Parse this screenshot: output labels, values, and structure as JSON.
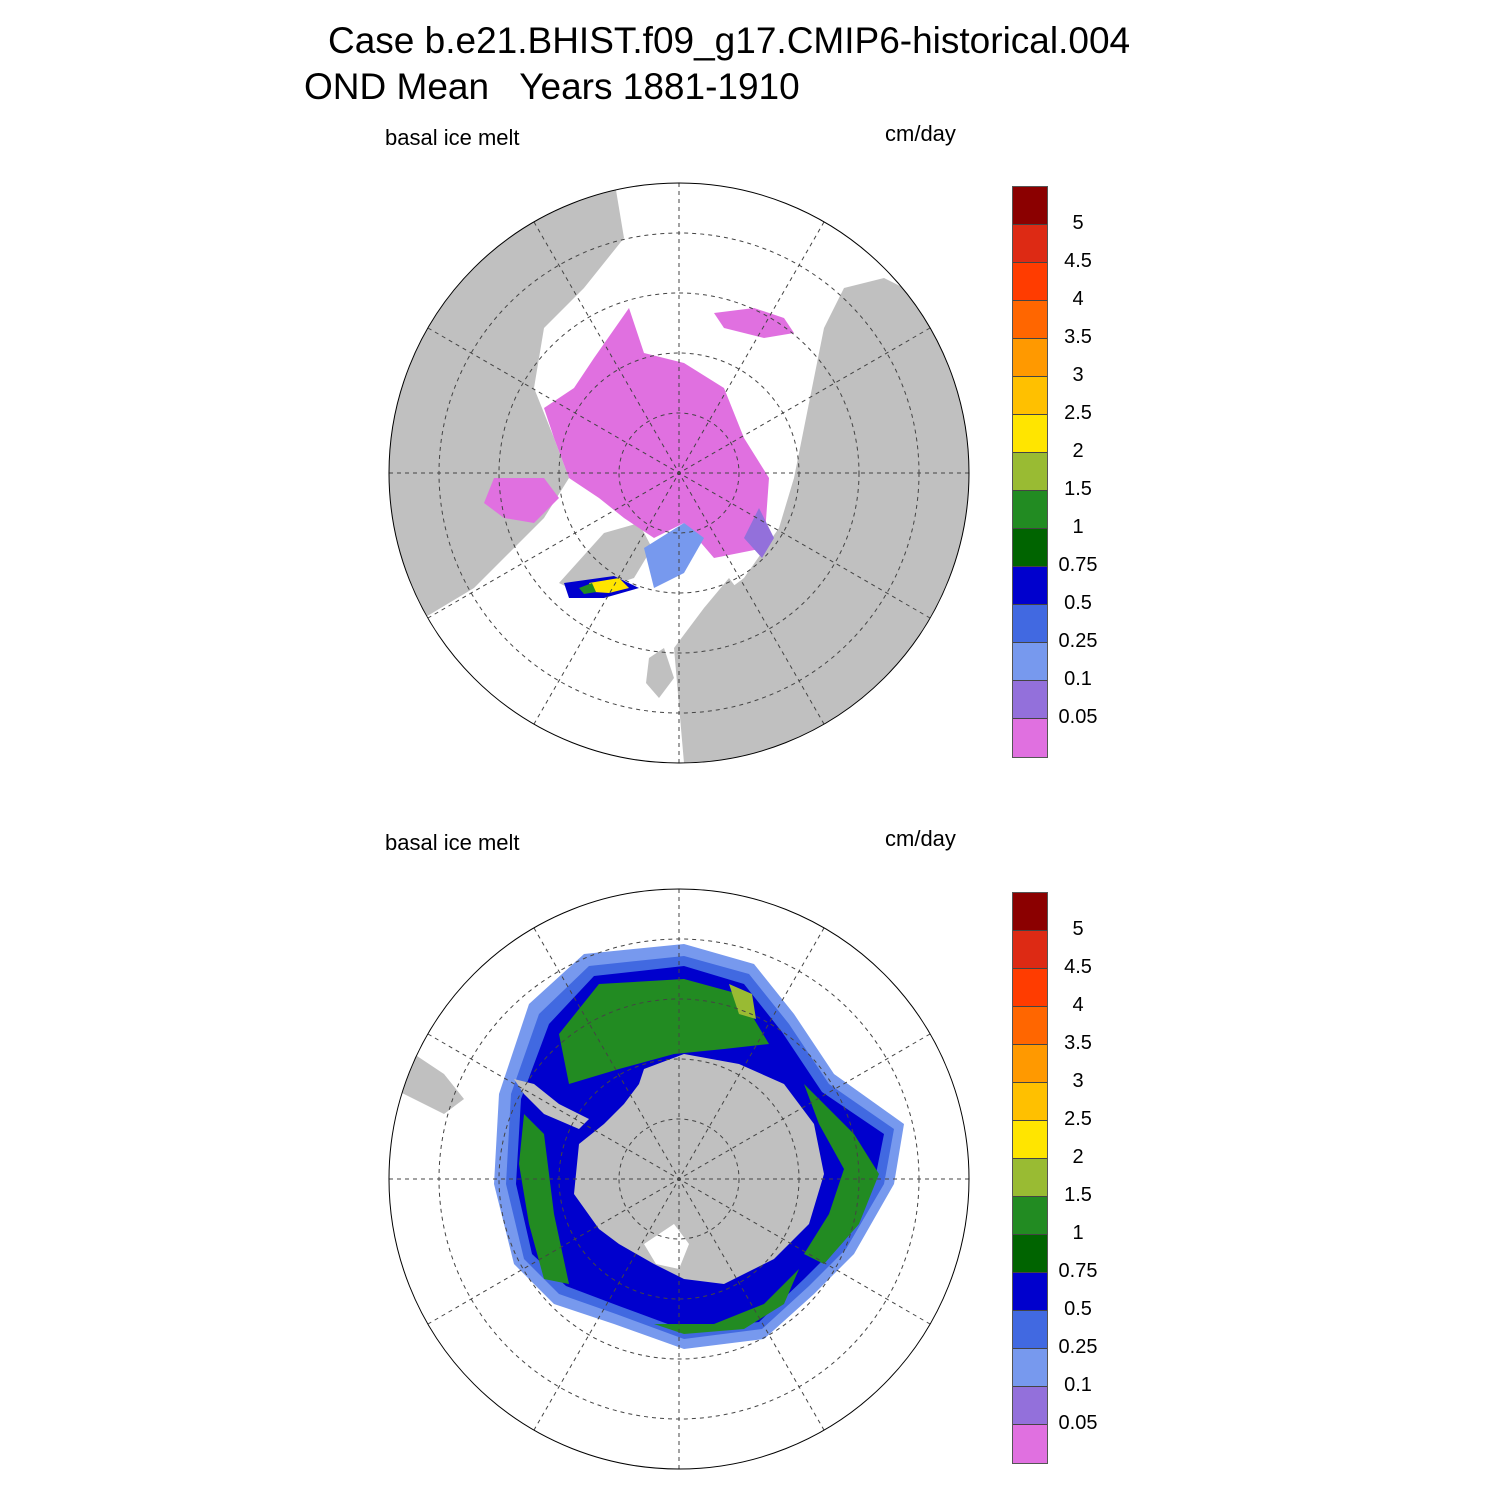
{
  "title": {
    "line1": "Case b.e21.BHIST.f09_g17.CMIP6-historical.004",
    "line2": "OND Mean   Years 1881-1910"
  },
  "panels": [
    {
      "id": "north",
      "variable_label": "basal ice melt",
      "units_label": "cm/day",
      "hemisphere": "north"
    },
    {
      "id": "south",
      "variable_label": "basal ice melt",
      "units_label": "cm/day",
      "hemisphere": "south"
    }
  ],
  "colorbar": {
    "labels": [
      "5",
      "4.5",
      "4",
      "3.5",
      "3",
      "2.5",
      "2",
      "1.5",
      "1",
      "0.75",
      "0.5",
      "0.25",
      "0.1",
      "0.05"
    ],
    "colors": [
      "#8b0000",
      "#dd2a14",
      "#ff3c00",
      "#ff6600",
      "#ff9900",
      "#ffc000",
      "#ffe500",
      "#99bb33",
      "#228b22",
      "#006400",
      "#0000cd",
      "#4169e1",
      "#7799ee",
      "#9370db",
      "#e070e0"
    ]
  },
  "map_colors": {
    "land": "#c0c0c0",
    "ocean": "#ffffff",
    "coast": "#000000"
  }
}
